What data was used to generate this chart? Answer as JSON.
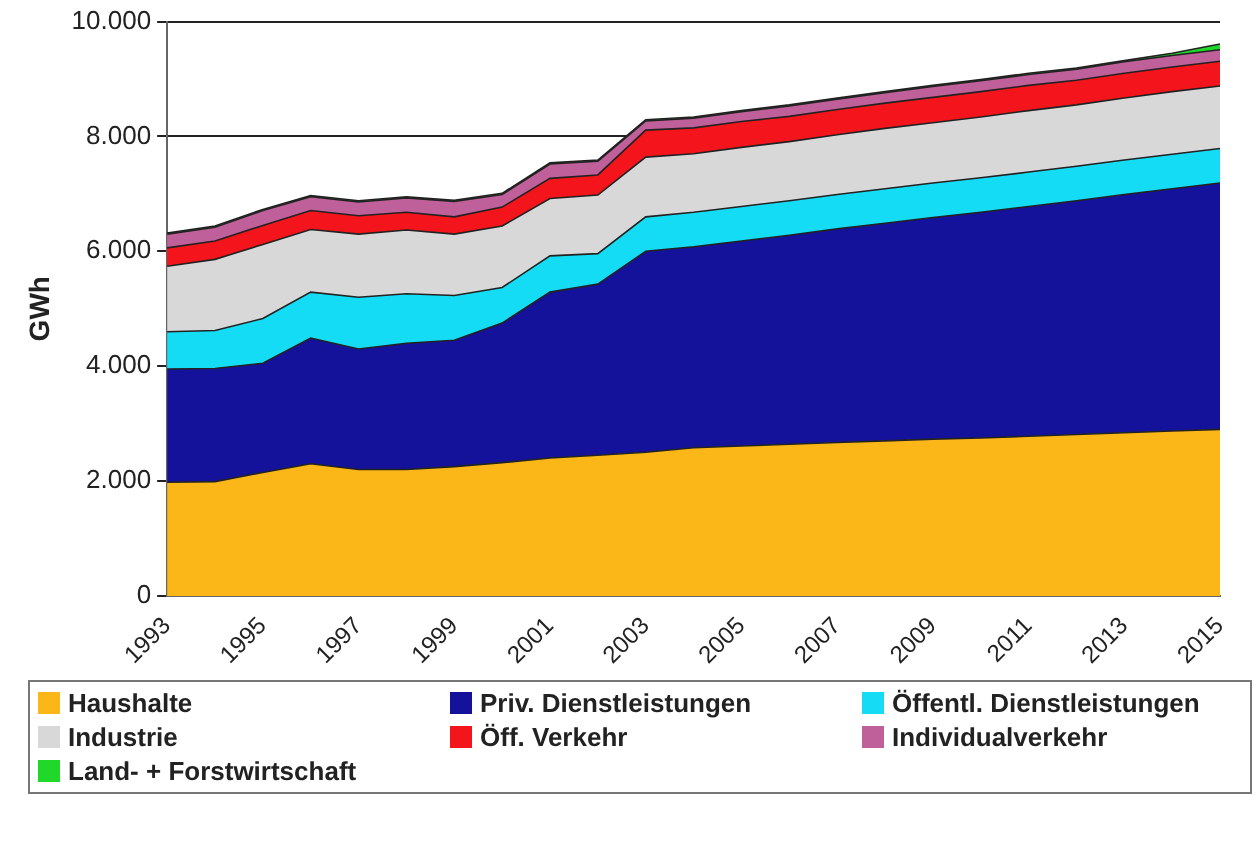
{
  "chart_data": {
    "type": "area",
    "stacked": true,
    "ylabel": "GWh",
    "categories": [
      "1993",
      null,
      "1995",
      null,
      "1997",
      null,
      "1999",
      null,
      "2001",
      null,
      "2003",
      null,
      "2005",
      null,
      "2007",
      null,
      "2009",
      null,
      "2011",
      null,
      "2013",
      null,
      "2015"
    ],
    "ylim": [
      0,
      10000
    ],
    "yticks": [
      {
        "value": 0,
        "label": "0"
      },
      {
        "value": 2000,
        "label": "2.000"
      },
      {
        "value": 4000,
        "label": "4.000"
      },
      {
        "value": 6000,
        "label": "6.000"
      },
      {
        "value": 8000,
        "label": "8.000"
      },
      {
        "value": 10000,
        "label": "10.000"
      }
    ],
    "grid": "y",
    "legend": "bottom",
    "series": [
      {
        "name": "Haushalte",
        "color": "#fbb717",
        "values": [
          1980,
          1990,
          2150,
          2300,
          2200,
          2200,
          2250,
          2320,
          2400,
          2450,
          2500,
          2580,
          2610,
          2640,
          2670,
          2700,
          2730,
          2750,
          2780,
          2810,
          2840,
          2870,
          2900
        ]
      },
      {
        "name": "Priv. Dienstleistungen",
        "color": "#14129a",
        "values": [
          1970,
          1970,
          1900,
          2190,
          2100,
          2200,
          2200,
          2430,
          2890,
          2980,
          3500,
          3500,
          3570,
          3640,
          3720,
          3790,
          3860,
          3930,
          4000,
          4070,
          4150,
          4220,
          4290
        ]
      },
      {
        "name": "Öffentl. Dienstleistungen",
        "color": "#15dcf5",
        "values": [
          650,
          660,
          780,
          800,
          900,
          860,
          780,
          620,
          630,
          530,
          600,
          600,
          600,
          600,
          600,
          600,
          600,
          600,
          600,
          600,
          600,
          600,
          600
        ]
      },
      {
        "name": "Industrie",
        "color": "#d8d8d8",
        "values": [
          1140,
          1240,
          1290,
          1090,
          1100,
          1110,
          1070,
          1070,
          1000,
          1020,
          1040,
          1020,
          1030,
          1030,
          1040,
          1050,
          1050,
          1060,
          1070,
          1070,
          1080,
          1090,
          1090
        ]
      },
      {
        "name": "Öff. Verkehr",
        "color": "#f4141b",
        "values": [
          320,
          320,
          330,
          330,
          320,
          310,
          300,
          330,
          350,
          350,
          470,
          450,
          450,
          440,
          440,
          440,
          440,
          440,
          440,
          430,
          430,
          430,
          430
        ]
      },
      {
        "name": "Individualverkehr",
        "color": "#c0609a",
        "values": [
          240,
          240,
          260,
          240,
          240,
          250,
          270,
          220,
          250,
          240,
          160,
          170,
          170,
          180,
          180,
          180,
          190,
          190,
          190,
          190,
          200,
          200,
          200
        ]
      },
      {
        "name": "Land- + Forstwirtschaft",
        "color": "#1fd82a",
        "values": [
          20,
          20,
          20,
          20,
          20,
          20,
          20,
          20,
          20,
          20,
          20,
          20,
          20,
          20,
          20,
          20,
          20,
          20,
          20,
          20,
          20,
          40,
          100
        ]
      }
    ]
  }
}
